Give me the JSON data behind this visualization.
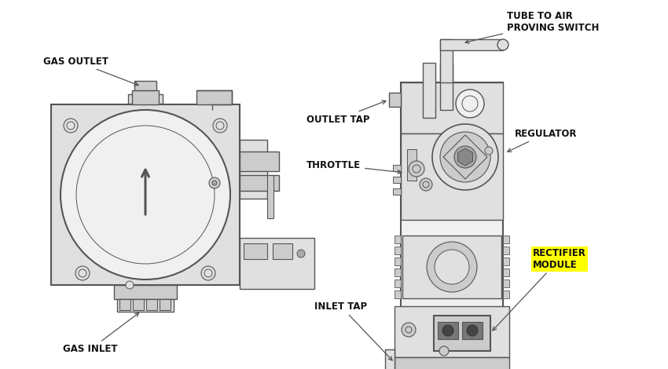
{
  "bg_color": "#ffffff",
  "line_color": "#555555",
  "label_color": "#111111",
  "highlight_color": "#ffff00",
  "fig_width": 8.5,
  "fig_height": 4.7,
  "labels": {
    "gas_outlet": "GAS OUTLET",
    "gas_inlet": "GAS INLET",
    "tube_to_air": "TUBE TO AIR\nPROVING SWITCH",
    "outlet_tap": "OUTLET TAP",
    "regulator": "REGULATOR",
    "throttle": "THROTTLE",
    "rectifier": "RECTIFIER\nMODULE",
    "inlet_tap": "INLET TAP"
  }
}
